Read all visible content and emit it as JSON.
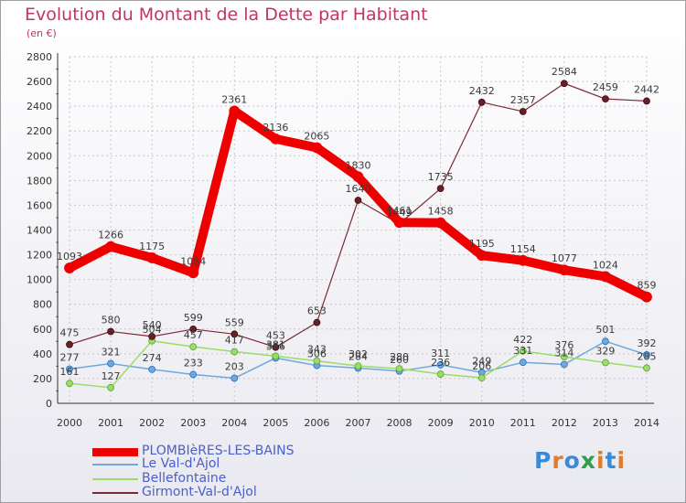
{
  "title": "Evolution du Montant de la Dette par Habitant",
  "subtitle": "(en €)",
  "logo": {
    "chars": [
      "P",
      "r",
      "o",
      "x",
      "i",
      "t",
      "i"
    ],
    "colors": [
      "#3b8ad6",
      "#e07c2a",
      "#3b8ad6",
      "#2f9e47",
      "#e07c2a",
      "#3b8ad6",
      "#e07c2a"
    ]
  },
  "chart_data": {
    "type": "line",
    "title": "Evolution du Montant de la Dette par Habitant",
    "ylabel": "(en €)",
    "xlabel": "",
    "x": [
      "2000",
      "2001",
      "2002",
      "2003",
      "2004",
      "2005",
      "2006",
      "2007",
      "2008",
      "2009",
      "2010",
      "2011",
      "2012",
      "2013",
      "2014"
    ],
    "ylim": [
      0,
      2800
    ],
    "yticks": [
      "0",
      "200",
      "400",
      "600",
      "800",
      "1000",
      "1200",
      "1400",
      "1600",
      "1800",
      "2000",
      "2200",
      "2400",
      "2600",
      "2800"
    ],
    "grid": true,
    "legend_position": "bottom-left",
    "series": [
      {
        "name": "PLOMBIèRES-LES-BAINS",
        "color": "#ee0000",
        "values": [
          1093,
          1266,
          1175,
          1054,
          2361,
          2136,
          2065,
          1830,
          1461,
          1458,
          1195,
          1154,
          1077,
          1024,
          859
        ]
      },
      {
        "name": "Le Val-d'Ajol",
        "color": "#6fa8dc",
        "values": [
          277,
          321,
          274,
          233,
          203,
          366,
          306,
          284,
          260,
          311,
          249,
          331,
          314,
          501,
          392
        ]
      },
      {
        "name": "Bellefontaine",
        "color": "#99dd66",
        "values": [
          161,
          127,
          504,
          457,
          417,
          381,
          343,
          302,
          280,
          236,
          206,
          422,
          376,
          329,
          285
        ]
      },
      {
        "name": "Girmont-Val-d'Ajol",
        "color": "#7b2a32",
        "values": [
          475,
          580,
          540,
          599,
          559,
          453,
          653,
          1640,
          1449,
          1735,
          2432,
          2357,
          2584,
          2459,
          2442
        ]
      }
    ]
  }
}
